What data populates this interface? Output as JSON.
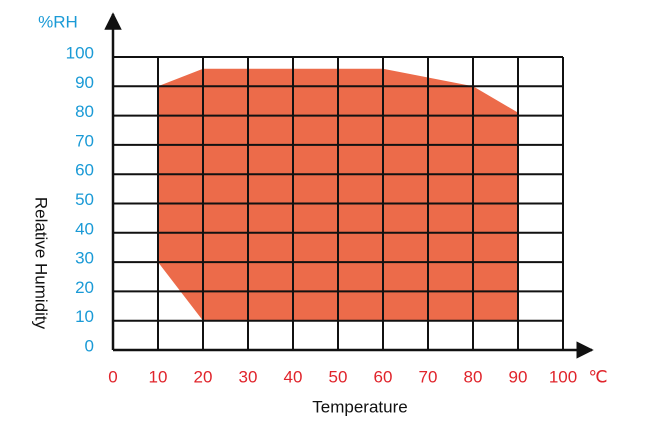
{
  "chart_data": {
    "type": "area",
    "x_label": "Temperature",
    "y_label": "Relative Humidity",
    "x_unit": "℃",
    "y_unit": "%RH",
    "x": [
      10,
      20,
      60,
      80,
      90,
      90,
      20,
      10
    ],
    "values": [
      90,
      96,
      96,
      90,
      81,
      10,
      10,
      30
    ],
    "color": "#ec6b4a",
    "xlim": [
      0,
      100
    ],
    "xticks": [
      0,
      10,
      20,
      30,
      40,
      50,
      60,
      70,
      80,
      90,
      100
    ],
    "ylim": [
      0,
      100
    ],
    "yticks": [
      0,
      10,
      20,
      30,
      40,
      50,
      60,
      70,
      80,
      90,
      100
    ],
    "xtick_color": "#e0242b",
    "ytick_color": "#1a9ad6",
    "grid": true
  }
}
